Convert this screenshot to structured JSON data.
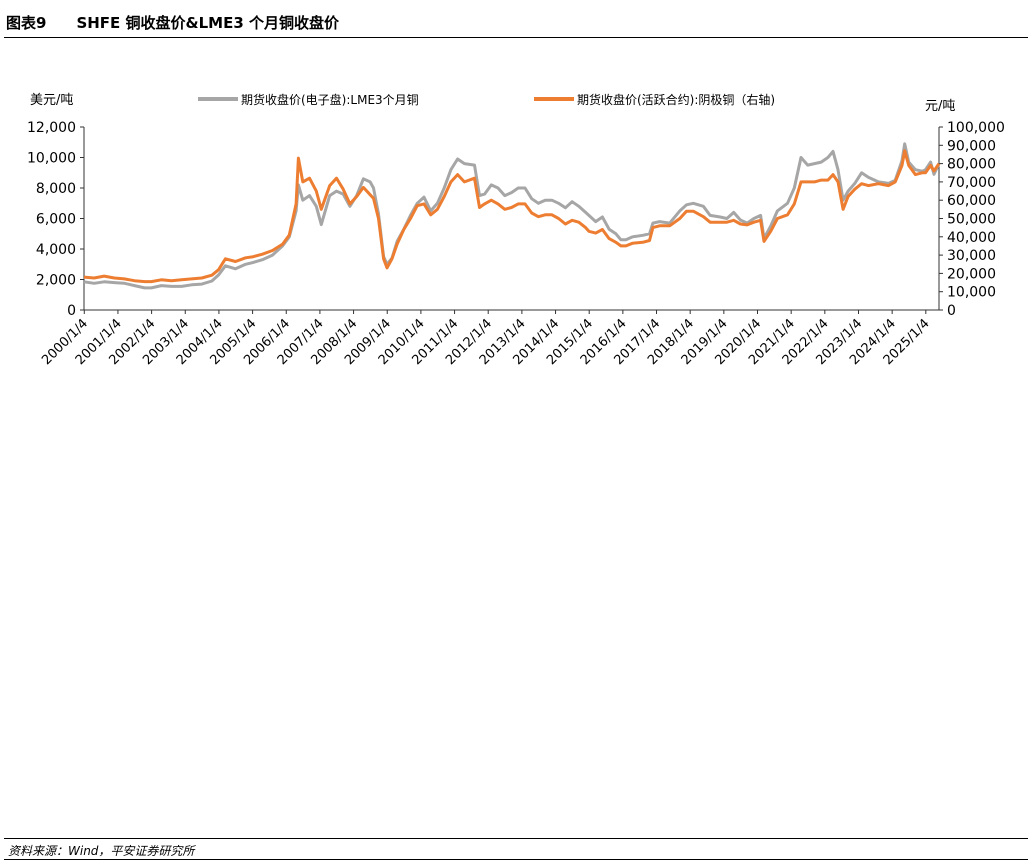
{
  "figure": {
    "label": "图表9",
    "title": "SHFE 铜收盘价&LME3 个月铜收盘价",
    "source": "资料来源：Wind，平安证券研究所"
  },
  "colors": {
    "lme": "#A6A6A6",
    "shfe": "#ED7D31",
    "axis": "#333333"
  },
  "chart_data": {
    "type": "line",
    "y_left_unit": "美元/吨",
    "y_right_unit": "元/吨",
    "ylim_left": [
      0,
      12000
    ],
    "ylim_right": [
      0,
      100000
    ],
    "yticks_left": [
      "0",
      "2,000",
      "4,000",
      "6,000",
      "8,000",
      "10,000",
      "12,000"
    ],
    "yticks_right": [
      "0",
      "10,000",
      "20,000",
      "30,000",
      "40,000",
      "50,000",
      "60,000",
      "70,000",
      "80,000",
      "90,000",
      "100,000"
    ],
    "xlim": [
      2000.0,
      2025.4
    ],
    "xticks": [
      "2000/1/4",
      "2001/1/4",
      "2002/1/4",
      "2003/1/4",
      "2004/1/4",
      "2005/1/4",
      "2006/1/4",
      "2007/1/4",
      "2008/1/4",
      "2009/1/4",
      "2010/1/4",
      "2011/1/4",
      "2012/1/4",
      "2013/1/4",
      "2014/1/4",
      "2015/1/4",
      "2016/1/4",
      "2017/1/4",
      "2018/1/4",
      "2019/1/4",
      "2020/1/4",
      "2021/1/4",
      "2022/1/4",
      "2023/1/4",
      "2024/1/4",
      "2025/1/4"
    ],
    "legend_position": "top",
    "series": [
      {
        "name": "期货收盘价(电子盘):LME3个月铜",
        "axis": "left",
        "points": [
          [
            2000.0,
            1850
          ],
          [
            2000.3,
            1750
          ],
          [
            2000.6,
            1850
          ],
          [
            2000.9,
            1800
          ],
          [
            2001.2,
            1750
          ],
          [
            2001.5,
            1600
          ],
          [
            2001.8,
            1450
          ],
          [
            2002.0,
            1450
          ],
          [
            2002.3,
            1600
          ],
          [
            2002.6,
            1550
          ],
          [
            2002.9,
            1550
          ],
          [
            2003.2,
            1650
          ],
          [
            2003.5,
            1700
          ],
          [
            2003.8,
            1900
          ],
          [
            2004.0,
            2300
          ],
          [
            2004.2,
            2900
          ],
          [
            2004.5,
            2700
          ],
          [
            2004.8,
            3000
          ],
          [
            2005.0,
            3100
          ],
          [
            2005.3,
            3300
          ],
          [
            2005.6,
            3600
          ],
          [
            2005.9,
            4200
          ],
          [
            2006.1,
            4800
          ],
          [
            2006.3,
            6500
          ],
          [
            2006.37,
            8200
          ],
          [
            2006.5,
            7200
          ],
          [
            2006.7,
            7500
          ],
          [
            2006.9,
            6800
          ],
          [
            2007.05,
            5600
          ],
          [
            2007.3,
            7500
          ],
          [
            2007.5,
            7800
          ],
          [
            2007.7,
            7600
          ],
          [
            2007.9,
            6800
          ],
          [
            2008.1,
            7500
          ],
          [
            2008.3,
            8600
          ],
          [
            2008.5,
            8400
          ],
          [
            2008.6,
            8000
          ],
          [
            2008.75,
            6300
          ],
          [
            2008.9,
            3500
          ],
          [
            2009.0,
            3000
          ],
          [
            2009.15,
            3400
          ],
          [
            2009.3,
            4500
          ],
          [
            2009.5,
            5300
          ],
          [
            2009.7,
            6200
          ],
          [
            2009.9,
            7000
          ],
          [
            2010.1,
            7400
          ],
          [
            2010.3,
            6500
          ],
          [
            2010.5,
            7000
          ],
          [
            2010.7,
            8000
          ],
          [
            2010.9,
            9200
          ],
          [
            2011.1,
            9900
          ],
          [
            2011.3,
            9600
          ],
          [
            2011.6,
            9500
          ],
          [
            2011.75,
            7500
          ],
          [
            2011.9,
            7600
          ],
          [
            2012.1,
            8200
          ],
          [
            2012.3,
            8000
          ],
          [
            2012.5,
            7500
          ],
          [
            2012.7,
            7700
          ],
          [
            2012.9,
            8000
          ],
          [
            2013.1,
            8000
          ],
          [
            2013.3,
            7300
          ],
          [
            2013.5,
            7000
          ],
          [
            2013.7,
            7200
          ],
          [
            2013.9,
            7200
          ],
          [
            2014.1,
            7000
          ],
          [
            2014.3,
            6700
          ],
          [
            2014.5,
            7100
          ],
          [
            2014.7,
            6800
          ],
          [
            2014.9,
            6400
          ],
          [
            2015.0,
            6200
          ],
          [
            2015.2,
            5800
          ],
          [
            2015.4,
            6100
          ],
          [
            2015.6,
            5300
          ],
          [
            2015.8,
            5000
          ],
          [
            2015.95,
            4600
          ],
          [
            2016.1,
            4600
          ],
          [
            2016.3,
            4800
          ],
          [
            2016.6,
            4900
          ],
          [
            2016.8,
            5000
          ],
          [
            2016.9,
            5700
          ],
          [
            2017.1,
            5800
          ],
          [
            2017.4,
            5700
          ],
          [
            2017.7,
            6500
          ],
          [
            2017.9,
            6900
          ],
          [
            2018.1,
            7000
          ],
          [
            2018.4,
            6800
          ],
          [
            2018.6,
            6200
          ],
          [
            2018.9,
            6100
          ],
          [
            2019.1,
            6000
          ],
          [
            2019.3,
            6400
          ],
          [
            2019.5,
            5900
          ],
          [
            2019.7,
            5700
          ],
          [
            2019.9,
            6000
          ],
          [
            2020.1,
            6200
          ],
          [
            2020.2,
            4700
          ],
          [
            2020.4,
            5500
          ],
          [
            2020.6,
            6500
          ],
          [
            2020.9,
            7000
          ],
          [
            2021.1,
            8000
          ],
          [
            2021.3,
            10000
          ],
          [
            2021.5,
            9500
          ],
          [
            2021.7,
            9600
          ],
          [
            2021.9,
            9700
          ],
          [
            2022.1,
            10000
          ],
          [
            2022.25,
            10400
          ],
          [
            2022.4,
            9200
          ],
          [
            2022.55,
            7200
          ],
          [
            2022.7,
            7800
          ],
          [
            2022.9,
            8300
          ],
          [
            2023.1,
            9000
          ],
          [
            2023.3,
            8700
          ],
          [
            2023.6,
            8400
          ],
          [
            2023.9,
            8300
          ],
          [
            2024.1,
            8500
          ],
          [
            2024.3,
            9800
          ],
          [
            2024.38,
            10900
          ],
          [
            2024.5,
            9700
          ],
          [
            2024.7,
            9200
          ],
          [
            2024.9,
            9100
          ],
          [
            2025.0,
            9200
          ],
          [
            2025.15,
            9700
          ],
          [
            2025.25,
            8900
          ],
          [
            2025.4,
            9600
          ]
        ]
      },
      {
        "name": "期货收盘价(活跃合约):阴极铜（右轴)",
        "axis": "right",
        "points": [
          [
            2000.0,
            18000
          ],
          [
            2000.3,
            17500
          ],
          [
            2000.6,
            18500
          ],
          [
            2000.9,
            17500
          ],
          [
            2001.2,
            17000
          ],
          [
            2001.5,
            16000
          ],
          [
            2001.8,
            15500
          ],
          [
            2002.0,
            15500
          ],
          [
            2002.3,
            16500
          ],
          [
            2002.6,
            16000
          ],
          [
            2002.9,
            16500
          ],
          [
            2003.2,
            17000
          ],
          [
            2003.5,
            17500
          ],
          [
            2003.8,
            19000
          ],
          [
            2004.0,
            22000
          ],
          [
            2004.2,
            28000
          ],
          [
            2004.5,
            26500
          ],
          [
            2004.8,
            28500
          ],
          [
            2005.0,
            29000
          ],
          [
            2005.3,
            30500
          ],
          [
            2005.6,
            32500
          ],
          [
            2005.9,
            36000
          ],
          [
            2006.1,
            41000
          ],
          [
            2006.3,
            58000
          ],
          [
            2006.37,
            83000
          ],
          [
            2006.5,
            70000
          ],
          [
            2006.7,
            72000
          ],
          [
            2006.9,
            65000
          ],
          [
            2007.05,
            55000
          ],
          [
            2007.3,
            68000
          ],
          [
            2007.5,
            72000
          ],
          [
            2007.7,
            66000
          ],
          [
            2007.9,
            58000
          ],
          [
            2008.1,
            62000
          ],
          [
            2008.3,
            67000
          ],
          [
            2008.5,
            63000
          ],
          [
            2008.6,
            61000
          ],
          [
            2008.75,
            50000
          ],
          [
            2008.9,
            28000
          ],
          [
            2009.0,
            23000
          ],
          [
            2009.15,
            28000
          ],
          [
            2009.3,
            36000
          ],
          [
            2009.5,
            44000
          ],
          [
            2009.7,
            50000
          ],
          [
            2009.9,
            57000
          ],
          [
            2010.1,
            58000
          ],
          [
            2010.3,
            52000
          ],
          [
            2010.5,
            55000
          ],
          [
            2010.7,
            62000
          ],
          [
            2010.9,
            70000
          ],
          [
            2011.1,
            74000
          ],
          [
            2011.3,
            70000
          ],
          [
            2011.6,
            72000
          ],
          [
            2011.75,
            56000
          ],
          [
            2011.9,
            58000
          ],
          [
            2012.1,
            60000
          ],
          [
            2012.3,
            58000
          ],
          [
            2012.5,
            55000
          ],
          [
            2012.7,
            56000
          ],
          [
            2012.9,
            58000
          ],
          [
            2013.1,
            58000
          ],
          [
            2013.3,
            53000
          ],
          [
            2013.5,
            51000
          ],
          [
            2013.7,
            52000
          ],
          [
            2013.9,
            52000
          ],
          [
            2014.1,
            50000
          ],
          [
            2014.3,
            47000
          ],
          [
            2014.5,
            49000
          ],
          [
            2014.7,
            48000
          ],
          [
            2014.9,
            45000
          ],
          [
            2015.0,
            43000
          ],
          [
            2015.2,
            42000
          ],
          [
            2015.4,
            44000
          ],
          [
            2015.6,
            39000
          ],
          [
            2015.8,
            37000
          ],
          [
            2015.95,
            35000
          ],
          [
            2016.1,
            35000
          ],
          [
            2016.3,
            36500
          ],
          [
            2016.6,
            37000
          ],
          [
            2016.8,
            38000
          ],
          [
            2016.9,
            45000
          ],
          [
            2017.1,
            46000
          ],
          [
            2017.4,
            46000
          ],
          [
            2017.7,
            50000
          ],
          [
            2017.9,
            54000
          ],
          [
            2018.1,
            54000
          ],
          [
            2018.4,
            51000
          ],
          [
            2018.6,
            48000
          ],
          [
            2018.9,
            48000
          ],
          [
            2019.1,
            48000
          ],
          [
            2019.3,
            49000
          ],
          [
            2019.5,
            47000
          ],
          [
            2019.7,
            46500
          ],
          [
            2019.9,
            48000
          ],
          [
            2020.1,
            49000
          ],
          [
            2020.2,
            37500
          ],
          [
            2020.4,
            43000
          ],
          [
            2020.6,
            50000
          ],
          [
            2020.9,
            52000
          ],
          [
            2021.1,
            58000
          ],
          [
            2021.3,
            70000
          ],
          [
            2021.5,
            70000
          ],
          [
            2021.7,
            70000
          ],
          [
            2021.9,
            71000
          ],
          [
            2022.1,
            71000
          ],
          [
            2022.25,
            74000
          ],
          [
            2022.4,
            70000
          ],
          [
            2022.55,
            55000
          ],
          [
            2022.7,
            62000
          ],
          [
            2022.9,
            66000
          ],
          [
            2023.1,
            69000
          ],
          [
            2023.3,
            68000
          ],
          [
            2023.6,
            69000
          ],
          [
            2023.9,
            68000
          ],
          [
            2024.1,
            70000
          ],
          [
            2024.3,
            79000
          ],
          [
            2024.38,
            87000
          ],
          [
            2024.5,
            79000
          ],
          [
            2024.7,
            74000
          ],
          [
            2024.9,
            75000
          ],
          [
            2025.0,
            75000
          ],
          [
            2025.15,
            79000
          ],
          [
            2025.25,
            76000
          ],
          [
            2025.4,
            80000
          ]
        ]
      }
    ]
  }
}
